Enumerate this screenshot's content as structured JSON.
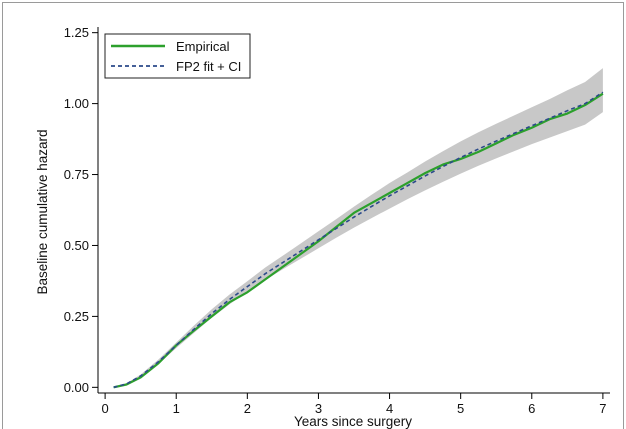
{
  "chart_data": {
    "type": "line",
    "xlabel": "Years since surgery",
    "ylabel": "Baseline cumulative hazard",
    "xlim": [
      -0.1,
      7.1
    ],
    "ylim": [
      -0.02,
      1.27
    ],
    "x_ticks": [
      "0",
      "1",
      "2",
      "3",
      "4",
      "5",
      "6",
      "7"
    ],
    "y_ticks": [
      "0.00",
      "0.25",
      "0.50",
      "0.75",
      "1.00",
      "1.25"
    ],
    "grid": false,
    "legend_position": "top-left",
    "colors": {
      "empirical": "#2ca02c",
      "fp2": "#2b4a8a",
      "ci_band": "#c8c8c8"
    },
    "series": [
      {
        "name": "Empirical",
        "x": [
          0.12,
          0.3,
          0.5,
          0.75,
          1.0,
          1.25,
          1.5,
          1.75,
          2.0,
          2.25,
          2.5,
          2.75,
          3.0,
          3.25,
          3.5,
          3.75,
          4.0,
          4.25,
          4.5,
          4.75,
          5.0,
          5.25,
          5.5,
          5.75,
          6.0,
          6.25,
          6.5,
          6.75,
          7.0
        ],
        "y": [
          0.0,
          0.01,
          0.035,
          0.085,
          0.148,
          0.2,
          0.25,
          0.3,
          0.335,
          0.38,
          0.425,
          0.47,
          0.515,
          0.565,
          0.615,
          0.65,
          0.685,
          0.72,
          0.755,
          0.785,
          0.805,
          0.83,
          0.86,
          0.89,
          0.915,
          0.945,
          0.965,
          0.995,
          1.035
        ]
      },
      {
        "name": "FP2 fit + CI",
        "x": [
          0.12,
          0.3,
          0.5,
          0.75,
          1.0,
          1.25,
          1.5,
          1.75,
          2.0,
          2.25,
          2.5,
          2.75,
          3.0,
          3.25,
          3.5,
          3.75,
          4.0,
          4.25,
          4.5,
          4.75,
          5.0,
          5.25,
          5.5,
          5.75,
          6.0,
          6.25,
          6.5,
          6.75,
          7.0
        ],
        "y": [
          0.0,
          0.012,
          0.04,
          0.09,
          0.148,
          0.205,
          0.26,
          0.31,
          0.355,
          0.4,
          0.44,
          0.48,
          0.52,
          0.56,
          0.6,
          0.638,
          0.675,
          0.71,
          0.745,
          0.778,
          0.81,
          0.84,
          0.868,
          0.895,
          0.922,
          0.948,
          0.975,
          1.0,
          1.04
        ],
        "ci_lower": [
          0.0,
          0.01,
          0.035,
          0.082,
          0.138,
          0.192,
          0.245,
          0.293,
          0.336,
          0.378,
          0.416,
          0.453,
          0.49,
          0.527,
          0.563,
          0.597,
          0.63,
          0.663,
          0.694,
          0.724,
          0.753,
          0.781,
          0.807,
          0.832,
          0.857,
          0.88,
          0.903,
          0.926,
          0.97
        ],
        "ci_upper": [
          0.0,
          0.014,
          0.045,
          0.098,
          0.158,
          0.218,
          0.275,
          0.327,
          0.374,
          0.422,
          0.464,
          0.507,
          0.55,
          0.593,
          0.637,
          0.679,
          0.72,
          0.757,
          0.796,
          0.832,
          0.867,
          0.899,
          0.929,
          0.958,
          0.987,
          1.016,
          1.047,
          1.076,
          1.125
        ]
      }
    ]
  }
}
